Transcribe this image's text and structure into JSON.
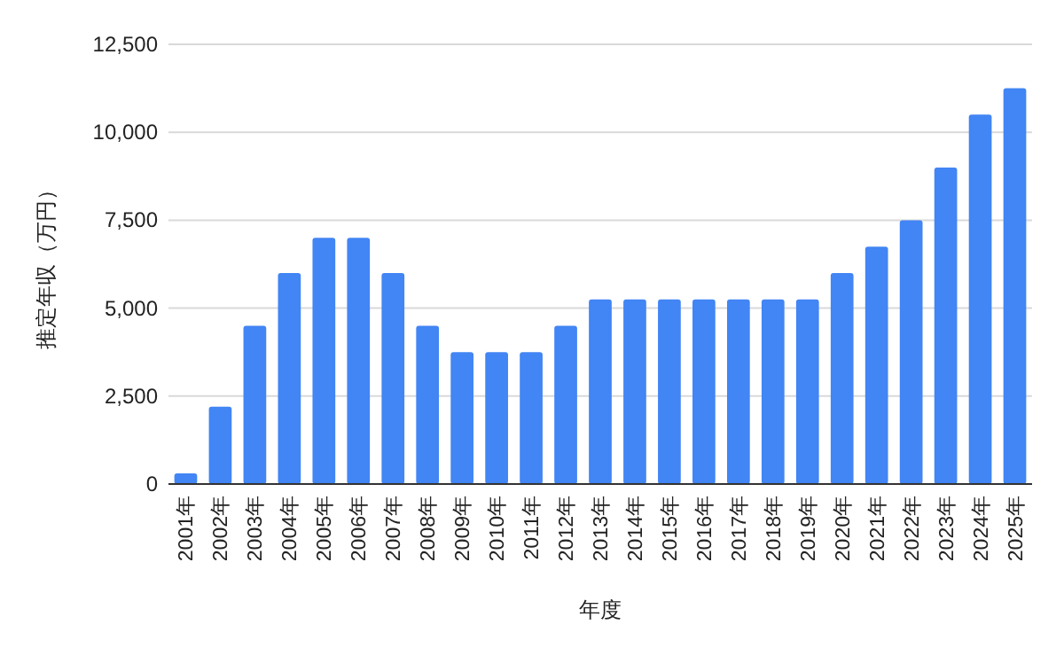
{
  "chart_data": {
    "type": "bar",
    "xlabel": "年度",
    "ylabel": "推定年収（万円）",
    "categories": [
      "2001年",
      "2002年",
      "2003年",
      "2004年",
      "2005年",
      "2006年",
      "2007年",
      "2008年",
      "2009年",
      "2010年",
      "2011年",
      "2012年",
      "2013年",
      "2014年",
      "2015年",
      "2016年",
      "2017年",
      "2018年",
      "2019年",
      "2020年",
      "2021年",
      "2022年",
      "2023年",
      "2024年",
      "2025年"
    ],
    "values": [
      300,
      2200,
      4500,
      6000,
      7000,
      7000,
      6000,
      4500,
      3750,
      3750,
      3750,
      4500,
      5250,
      5250,
      5250,
      5250,
      5250,
      5250,
      5250,
      6000,
      6750,
      7500,
      9000,
      10500,
      11250
    ],
    "color": "#4285f4",
    "ylim": [
      0,
      12500
    ],
    "yticks": [
      0,
      {
        "value": 2500,
        "label": "2,500"
      },
      {
        "value": 5000,
        "label": "5,000"
      },
      {
        "value": 7500,
        "label": "7,500"
      },
      {
        "value": 10000,
        "label": "10,000"
      },
      {
        "value": 12500,
        "label": "12,500"
      }
    ],
    "grid": "y"
  }
}
